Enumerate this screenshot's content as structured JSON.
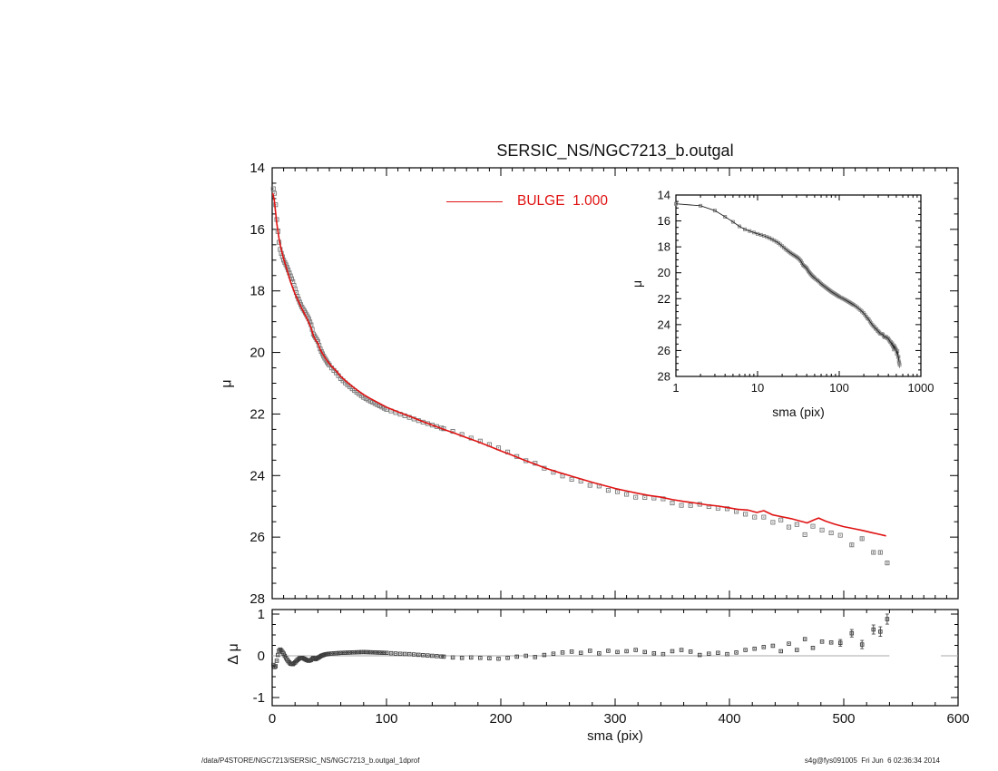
{
  "header": {
    "title": "SERSIC_NS/NGC7213_b.outgal"
  },
  "legend": {
    "label": "BULGE  1.000",
    "color": "#e01212"
  },
  "labels": {
    "main_ylabel": "μ",
    "residual_ylabel": "Δ μ",
    "xlabel": "sma (pix)",
    "inset_xlabel": "sma (pix)",
    "inset_ylabel": "μ"
  },
  "footer": {
    "left": "/data/P4STORE/NGC7213/SERSIC_NS/NGC7213_b.outgal_1dprof",
    "right": "s4g@fys091005  Fri Jun  6 02:36:34 2014"
  },
  "chart_data": [
    {
      "id": "main_profile",
      "type": "scatter",
      "title": "SERSIC_NS/NGC7213_b.outgal",
      "xlabel": "sma (pix)",
      "ylabel": "μ",
      "xlim": [
        0,
        600
      ],
      "ylim": [
        28,
        14
      ],
      "grid": false,
      "xticks": [
        0,
        100,
        200,
        300,
        400,
        500,
        600
      ],
      "yticks": [
        14,
        16,
        18,
        20,
        22,
        24,
        26,
        28
      ],
      "legend_entries": [
        {
          "label": "BULGE  1.000",
          "type": "line",
          "color": "#e01212",
          "position": "top-center"
        }
      ],
      "series": [
        {
          "name": "surface-brightness-data",
          "marker": "open-square",
          "color": "#787878",
          "derivation": "mu_data(sma) = model(sma) + residual(sma)",
          "sample_sma_rules": [
            [
              1,
              50,
              1
            ],
            [
              52,
              100,
              2
            ],
            [
              104,
              148,
              4
            ]
          ],
          "sample_sma_outer": [
            150,
            158,
            166,
            174,
            182,
            190,
            198,
            206,
            214,
            222,
            230,
            238,
            246,
            254,
            262,
            270,
            278,
            286,
            294,
            302,
            310,
            318,
            326,
            334,
            342,
            350,
            358,
            366,
            374,
            382,
            390,
            398,
            406,
            414,
            422,
            430,
            438,
            445,
            452,
            459,
            466,
            473,
            481,
            489,
            497,
            507,
            516,
            526,
            532,
            538
          ],
          "errorbars_from_sma": 507,
          "errorbar_mag": 0.07
        },
        {
          "name": "bulge-model",
          "type": "line",
          "color": "#e01212",
          "points_sma_mu": [
            [
              0.5,
              14.82
            ],
            [
              1,
              14.9
            ],
            [
              2,
              15.1
            ],
            [
              3,
              15.45
            ],
            [
              4,
              15.8
            ],
            [
              5,
              16.05
            ],
            [
              6,
              16.3
            ],
            [
              7,
              16.5
            ],
            [
              8,
              16.65
            ],
            [
              10,
              16.95
            ],
            [
              12,
              17.2
            ],
            [
              14,
              17.45
            ],
            [
              16,
              17.7
            ],
            [
              18,
              17.9
            ],
            [
              20,
              18.1
            ],
            [
              22,
              18.27
            ],
            [
              25,
              18.5
            ],
            [
              28,
              18.72
            ],
            [
              31,
              18.95
            ],
            [
              34,
              19.2
            ],
            [
              36,
              19.45
            ],
            [
              38,
              19.6
            ],
            [
              40,
              19.7
            ],
            [
              42,
              19.9
            ],
            [
              45,
              20.1
            ],
            [
              48,
              20.27
            ],
            [
              52,
              20.45
            ],
            [
              56,
              20.6
            ],
            [
              60,
              20.78
            ],
            [
              65,
              20.95
            ],
            [
              70,
              21.1
            ],
            [
              75,
              21.24
            ],
            [
              80,
              21.37
            ],
            [
              85,
              21.48
            ],
            [
              90,
              21.58
            ],
            [
              95,
              21.68
            ],
            [
              100,
              21.78
            ],
            [
              110,
              21.93
            ],
            [
              120,
              22.07
            ],
            [
              130,
              22.22
            ],
            [
              140,
              22.36
            ],
            [
              150,
              22.5
            ],
            [
              160,
              22.63
            ],
            [
              170,
              22.77
            ],
            [
              180,
              22.9
            ],
            [
              190,
              23.05
            ],
            [
              200,
              23.2
            ],
            [
              210,
              23.34
            ],
            [
              220,
              23.49
            ],
            [
              230,
              23.63
            ],
            [
              240,
              23.77
            ],
            [
              250,
              23.89
            ],
            [
              260,
              24.0
            ],
            [
              270,
              24.11
            ],
            [
              280,
              24.22
            ],
            [
              290,
              24.32
            ],
            [
              300,
              24.42
            ],
            [
              310,
              24.5
            ],
            [
              320,
              24.58
            ],
            [
              330,
              24.65
            ],
            [
              340,
              24.7
            ],
            [
              350,
              24.78
            ],
            [
              360,
              24.84
            ],
            [
              370,
              24.89
            ],
            [
              380,
              24.95
            ],
            [
              390,
              24.99
            ],
            [
              400,
              25.05
            ],
            [
              408,
              25.1
            ],
            [
              416,
              25.12
            ],
            [
              424,
              25.2
            ],
            [
              430,
              25.14
            ],
            [
              438,
              25.28
            ],
            [
              446,
              25.34
            ],
            [
              454,
              25.4
            ],
            [
              462,
              25.48
            ],
            [
              468,
              25.54
            ],
            [
              474,
              25.44
            ],
            [
              478,
              25.38
            ],
            [
              484,
              25.48
            ],
            [
              492,
              25.58
            ],
            [
              500,
              25.66
            ],
            [
              508,
              25.72
            ],
            [
              516,
              25.78
            ],
            [
              524,
              25.85
            ],
            [
              530,
              25.9
            ],
            [
              537,
              25.96
            ]
          ]
        }
      ]
    },
    {
      "id": "inset_log_profile",
      "type": "scatter",
      "xscale": "log",
      "xlabel": "sma (pix)",
      "ylabel": "μ",
      "xlim": [
        1,
        1000
      ],
      "ylim": [
        28,
        14
      ],
      "xticks": [
        1,
        10,
        100,
        1000
      ],
      "yticks": [
        14,
        16,
        18,
        20,
        22,
        24,
        26,
        28
      ],
      "series_ref": "surface-brightness-data",
      "errorbars_from_sma": 459,
      "extra_points_sma_mu": [
        [
          543,
          26.95
        ],
        [
          549,
          27.1
        ]
      ]
    },
    {
      "id": "residual",
      "type": "scatter",
      "xlabel": "sma (pix)",
      "ylabel": "Δ μ",
      "xlim": [
        0,
        600
      ],
      "ylim": [
        -1,
        1
      ],
      "xticks": [
        0,
        100,
        200,
        300,
        400,
        500,
        600
      ],
      "yticks": [
        1,
        0,
        -1
      ],
      "zero_line": {
        "present": true,
        "span_sma": [
          0,
          540
        ],
        "stub_sma": [
          585,
          600
        ],
        "color": "#a8a8a8"
      },
      "errorbars_from_sma": 497,
      "series": [
        {
          "name": "residual-data-minus-model",
          "marker": "open-square",
          "color": "#3c3c3c",
          "points_sma_dmu": [
            [
              1,
              -0.22
            ],
            [
              2,
              -0.27
            ],
            [
              3,
              -0.25
            ],
            [
              4,
              -0.12
            ],
            [
              5,
              0.02
            ],
            [
              6,
              0.12
            ],
            [
              7,
              0.15
            ],
            [
              8,
              0.13
            ],
            [
              10,
              0.05
            ],
            [
              12,
              -0.05
            ],
            [
              14,
              -0.13
            ],
            [
              16,
              -0.19
            ],
            [
              18,
              -0.2
            ],
            [
              20,
              -0.16
            ],
            [
              22,
              -0.1
            ],
            [
              24,
              -0.06
            ],
            [
              26,
              -0.05
            ],
            [
              28,
              -0.07
            ],
            [
              30,
              -0.1
            ],
            [
              32,
              -0.12
            ],
            [
              34,
              -0.1
            ],
            [
              36,
              -0.05
            ],
            [
              38,
              -0.08
            ],
            [
              40,
              -0.05
            ],
            [
              43,
              0.0
            ],
            [
              46,
              0.03
            ],
            [
              50,
              0.05
            ],
            [
              55,
              0.06
            ],
            [
              60,
              0.07
            ],
            [
              70,
              0.08
            ],
            [
              80,
              0.09
            ],
            [
              90,
              0.08
            ],
            [
              100,
              0.07
            ],
            [
              110,
              0.05
            ],
            [
              120,
              0.04
            ],
            [
              130,
              0.02
            ],
            [
              140,
              0.0
            ],
            [
              150,
              -0.02
            ],
            [
              158,
              -0.04
            ],
            [
              166,
              -0.05
            ],
            [
              174,
              -0.04
            ],
            [
              182,
              -0.05
            ],
            [
              190,
              -0.06
            ],
            [
              198,
              -0.07
            ],
            [
              206,
              -0.05
            ],
            [
              214,
              -0.02
            ],
            [
              222,
              0.0
            ],
            [
              230,
              -0.03
            ],
            [
              238,
              0.02
            ],
            [
              246,
              0.05
            ],
            [
              254,
              0.08
            ],
            [
              262,
              0.1
            ],
            [
              270,
              0.07
            ],
            [
              278,
              0.12
            ],
            [
              286,
              0.06
            ],
            [
              294,
              0.12
            ],
            [
              302,
              0.09
            ],
            [
              310,
              0.11
            ],
            [
              318,
              0.14
            ],
            [
              326,
              0.09
            ],
            [
              334,
              0.06
            ],
            [
              342,
              0.04
            ],
            [
              350,
              0.11
            ],
            [
              358,
              0.14
            ],
            [
              366,
              0.1
            ],
            [
              374,
              0.02
            ],
            [
              382,
              0.05
            ],
            [
              390,
              0.07
            ],
            [
              398,
              0.04
            ],
            [
              406,
              0.08
            ],
            [
              414,
              0.14
            ],
            [
              422,
              0.17
            ],
            [
              430,
              0.21
            ],
            [
              438,
              0.24
            ],
            [
              445,
              0.11
            ],
            [
              452,
              0.29
            ],
            [
              459,
              0.14
            ],
            [
              466,
              0.4
            ],
            [
              473,
              0.19
            ],
            [
              481,
              0.34
            ],
            [
              489,
              0.32
            ],
            [
              497,
              0.31
            ],
            [
              507,
              0.54
            ],
            [
              516,
              0.27
            ],
            [
              526,
              0.63
            ],
            [
              532,
              0.58
            ],
            [
              538,
              0.88
            ]
          ]
        }
      ]
    }
  ]
}
